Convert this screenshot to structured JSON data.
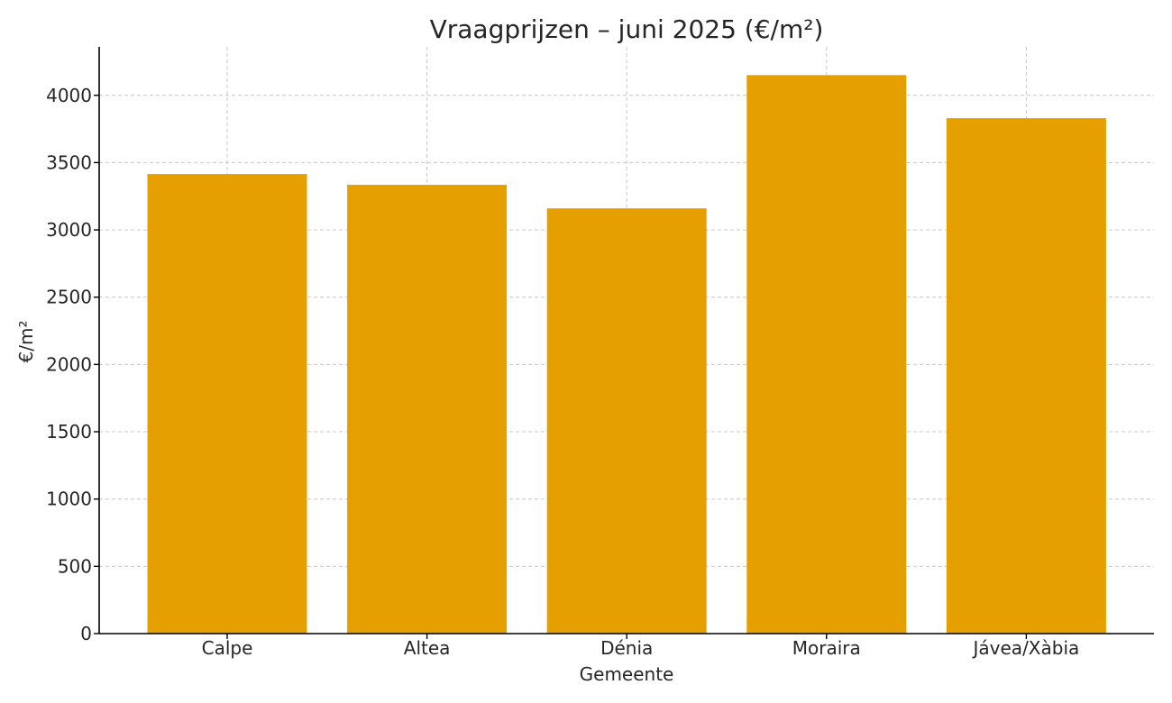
{
  "chart_data": {
    "type": "bar",
    "title": "Vraagprijzen – juni 2025 (€/m²)",
    "xlabel": "Gemeente",
    "ylabel": "€/m²",
    "categories": [
      "Calpe",
      "Altea",
      "Dénia",
      "Moraira",
      "Jávea/Xàbia"
    ],
    "values": [
      3415,
      3335,
      3160,
      4150,
      3830
    ],
    "ylim": [
      0,
      4360
    ],
    "yticks": [
      0,
      500,
      1000,
      1500,
      2000,
      2500,
      3000,
      3500,
      4000
    ],
    "grid": true,
    "bar_color": "#e5a000"
  }
}
